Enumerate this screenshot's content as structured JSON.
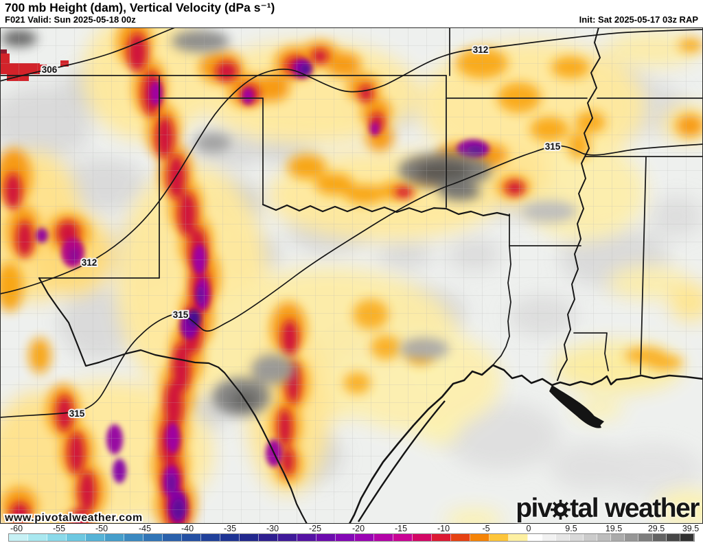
{
  "header": {
    "title": "700 mb Height (dam), Vertical Velocity (dPa s⁻¹)",
    "valid": "F021 Valid: Sun 2025-05-18 00z",
    "init": "Init: Sat 2025-05-17 03z RAP"
  },
  "map": {
    "watermark": "www.pivotalweather.com",
    "logo": {
      "pre": "piv",
      "mid": "tal",
      "word2": "weather"
    },
    "contour_labels": [
      {
        "text": "306"
      },
      {
        "text": "312"
      },
      {
        "text": "312"
      },
      {
        "text": "315"
      },
      {
        "text": "315"
      },
      {
        "text": "315"
      }
    ]
  },
  "colorbar": {
    "ticks": [
      {
        "label": "-60",
        "pct": 1.2
      },
      {
        "label": "-55",
        "pct": 7.4
      },
      {
        "label": "-50",
        "pct": 13.6
      },
      {
        "label": "-45",
        "pct": 19.9
      },
      {
        "label": "-40",
        "pct": 26.1
      },
      {
        "label": "-35",
        "pct": 32.3
      },
      {
        "label": "-30",
        "pct": 38.5
      },
      {
        "label": "-25",
        "pct": 44.7
      },
      {
        "label": "-20",
        "pct": 51.0
      },
      {
        "label": "-15",
        "pct": 57.2
      },
      {
        "label": "-10",
        "pct": 63.4
      },
      {
        "label": "-5",
        "pct": 69.6
      },
      {
        "label": "0",
        "pct": 75.8
      },
      {
        "label": "9.5",
        "pct": 82.0
      },
      {
        "label": "19.5",
        "pct": 88.2
      },
      {
        "label": "29.5",
        "pct": 94.4
      },
      {
        "label": "39.5",
        "pct": 99.4
      }
    ],
    "negative_cells": [
      "#c6f1f5",
      "#a9e8f0",
      "#8bdaea",
      "#6dc8e1",
      "#56b3d7",
      "#459ecb",
      "#3a89c1",
      "#3175b7",
      "#2a61ac",
      "#2450a3",
      "#20419b",
      "#1e3494",
      "#22288e",
      "#2e1f90",
      "#3f1a9a",
      "#5513a4",
      "#6c0cae",
      "#8308b6",
      "#9a05b4",
      "#b304a8",
      "#c90495",
      "#d30766",
      "#dc1a33",
      "#e64212",
      "#f58407",
      "#fdc53a",
      "#fdf0a2"
    ],
    "positive_cells": [
      "#ffffff",
      "#f2f2f2",
      "#e6e6e6",
      "#d9d9d9",
      "#cbcbcb",
      "#bdbdbd",
      "#ababab",
      "#969696",
      "#7e7e7e",
      "#636363",
      "#474747",
      "#323232"
    ],
    "negative_flex": 75.8,
    "positive_flex": 24.2
  }
}
